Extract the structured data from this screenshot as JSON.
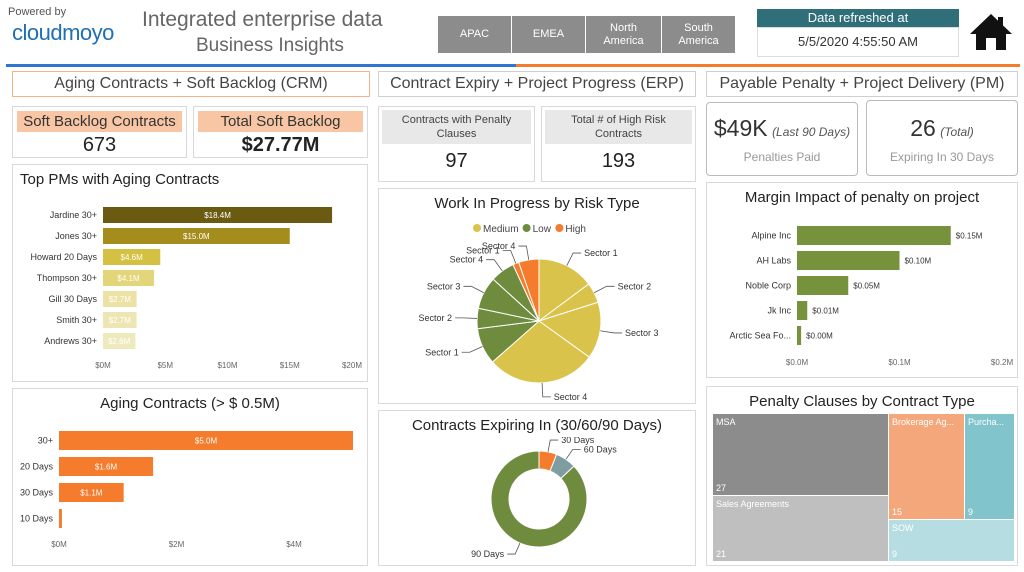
{
  "header": {
    "powered_by": "Powered by",
    "logo": "cloudmoyo",
    "title_line1": "Integrated enterprise data",
    "title_line2": "Business Insights",
    "regions": [
      "APAC",
      "EMEA",
      "North America",
      "South America"
    ],
    "refresh_label": "Data refreshed at",
    "refresh_time": "5/5/2020 4:55:50 AM",
    "home_icon": "home-icon"
  },
  "sections": {
    "crm": "Aging Contracts + Soft Backlog (CRM)",
    "erp": "Contract Expiry + Project Progress (ERP)",
    "pm": "Payable Penalty + Project Delivery (PM)"
  },
  "kpis": {
    "soft_backlog_contracts": {
      "label": "Soft Backlog Contracts",
      "value": "673"
    },
    "total_soft_backlog": {
      "label": "Total Soft Backlog",
      "value": "$27.77M"
    },
    "penalty_clauses": {
      "label": "Contracts with Penalty Clauses",
      "value": "97"
    },
    "high_risk": {
      "label": "Total # of High Risk Contracts",
      "value": "193"
    },
    "penalties_paid": {
      "value": "$49K",
      "note": "(Last 90 Days)",
      "label": "Penalties Paid"
    },
    "expiring": {
      "value": "26",
      "note": "(Total)",
      "label": "Expiring In 30 Days"
    }
  },
  "chart_data": [
    {
      "id": "top_pms",
      "type": "bar",
      "title": "Top PMs with Aging Contracts",
      "categories": [
        "Jardine 30+",
        "Jones 30+",
        "Howard 20 Days",
        "Thompson 30+",
        "Gill 30 Days",
        "Smith 30+",
        "Andrews 30+"
      ],
      "values": [
        18.4,
        15.0,
        4.6,
        4.1,
        2.7,
        2.7,
        2.6
      ],
      "labels": [
        "$18.4M",
        "$15.0M",
        "$4.6M",
        "$4.1M",
        "$2.7M",
        "$2.7M",
        "$2.6M"
      ],
      "colors": [
        "#6b5a12",
        "#a48c1d",
        "#d4c141",
        "#e3d67a",
        "#ebe2a3",
        "#ede6b3",
        "#efe9be"
      ],
      "xticks": [
        "$0M",
        "$5M",
        "$10M",
        "$15M",
        "$20M"
      ],
      "xlim": [
        0,
        20
      ]
    },
    {
      "id": "aging",
      "type": "bar",
      "title": "Aging Contracts (> $ 0.5M)",
      "categories": [
        "30+",
        "20 Days",
        "30 Days",
        "10 Days"
      ],
      "values": [
        5.0,
        1.6,
        1.1,
        0.05
      ],
      "labels": [
        "$5.0M",
        "$1.6M",
        "$1.1M",
        ""
      ],
      "color": "#f47c2c",
      "xticks": [
        "$0M",
        "$2M",
        "$4M"
      ],
      "xlim": [
        0,
        5.0
      ]
    },
    {
      "id": "wip",
      "type": "pie",
      "title": "Work In Progress by Risk Type",
      "legend": [
        {
          "name": "Medium",
          "color": "#d9c34a"
        },
        {
          "name": "Low",
          "color": "#6f8c3e"
        },
        {
          "name": "High",
          "color": "#f47c2c"
        }
      ],
      "slices": [
        {
          "label": "Sector 1",
          "value": 14,
          "color": "#d9c34a"
        },
        {
          "label": "Sector 2",
          "value": 5,
          "color": "#d9c34a"
        },
        {
          "label": "Sector 3",
          "value": 14,
          "color": "#d9c34a"
        },
        {
          "label": "Sector 4",
          "value": 27,
          "color": "#d9c34a"
        },
        {
          "label": "Sector 1",
          "value": 9,
          "color": "#6f8c3e"
        },
        {
          "label": "Sector 2",
          "value": 5,
          "color": "#6f8c3e"
        },
        {
          "label": "Sector 3",
          "value": 8,
          "color": "#6f8c3e"
        },
        {
          "label": "Sector 4",
          "value": 6,
          "color": "#6f8c3e"
        },
        {
          "label": "Sector 1",
          "value": 1.5,
          "color": "#f47c2c"
        },
        {
          "label": "Sector 4",
          "value": 5,
          "color": "#f47c2c"
        }
      ]
    },
    {
      "id": "expiring",
      "type": "pie",
      "title": "Contracts Expiring In (30/60/90 Days)",
      "slices": [
        {
          "label": "30 Days",
          "value": 6,
          "color": "#f47c2c"
        },
        {
          "label": "60 Days",
          "value": 7,
          "color": "#7f9ca0"
        },
        {
          "label": "90 Days",
          "value": 87,
          "color": "#6f8c3e"
        }
      ]
    },
    {
      "id": "margin",
      "type": "bar",
      "title": "Margin Impact of penalty on project",
      "categories": [
        "Alpine Inc",
        "AH Labs",
        "Noble Corp",
        "Jk Inc",
        "Arctic Sea Fo..."
      ],
      "values": [
        0.15,
        0.1,
        0.05,
        0.01,
        0.004
      ],
      "labels": [
        "$0.15M",
        "$0.10M",
        "$0.05M",
        "$0.01M",
        "$0.00M"
      ],
      "color": "#76923c",
      "xticks": [
        "$0.0M",
        "$0.1M",
        "$0.2M"
      ],
      "xlim": [
        0,
        0.2
      ]
    },
    {
      "id": "treemap",
      "type": "treemap",
      "title": "Penalty Clauses by Contract Type",
      "items": [
        {
          "name": "MSA",
          "value": 27,
          "color": "#8c8c8c"
        },
        {
          "name": "Sales Agreements",
          "value": 21,
          "color": "#bfbfbf"
        },
        {
          "name": "Brokerage Ag...",
          "value": 15,
          "color": "#f4a77a"
        },
        {
          "name": "Purcha...",
          "value": 9,
          "color": "#82c4cc"
        },
        {
          "name": "SOW",
          "value": 9,
          "color": "#b6dde2"
        }
      ]
    }
  ]
}
